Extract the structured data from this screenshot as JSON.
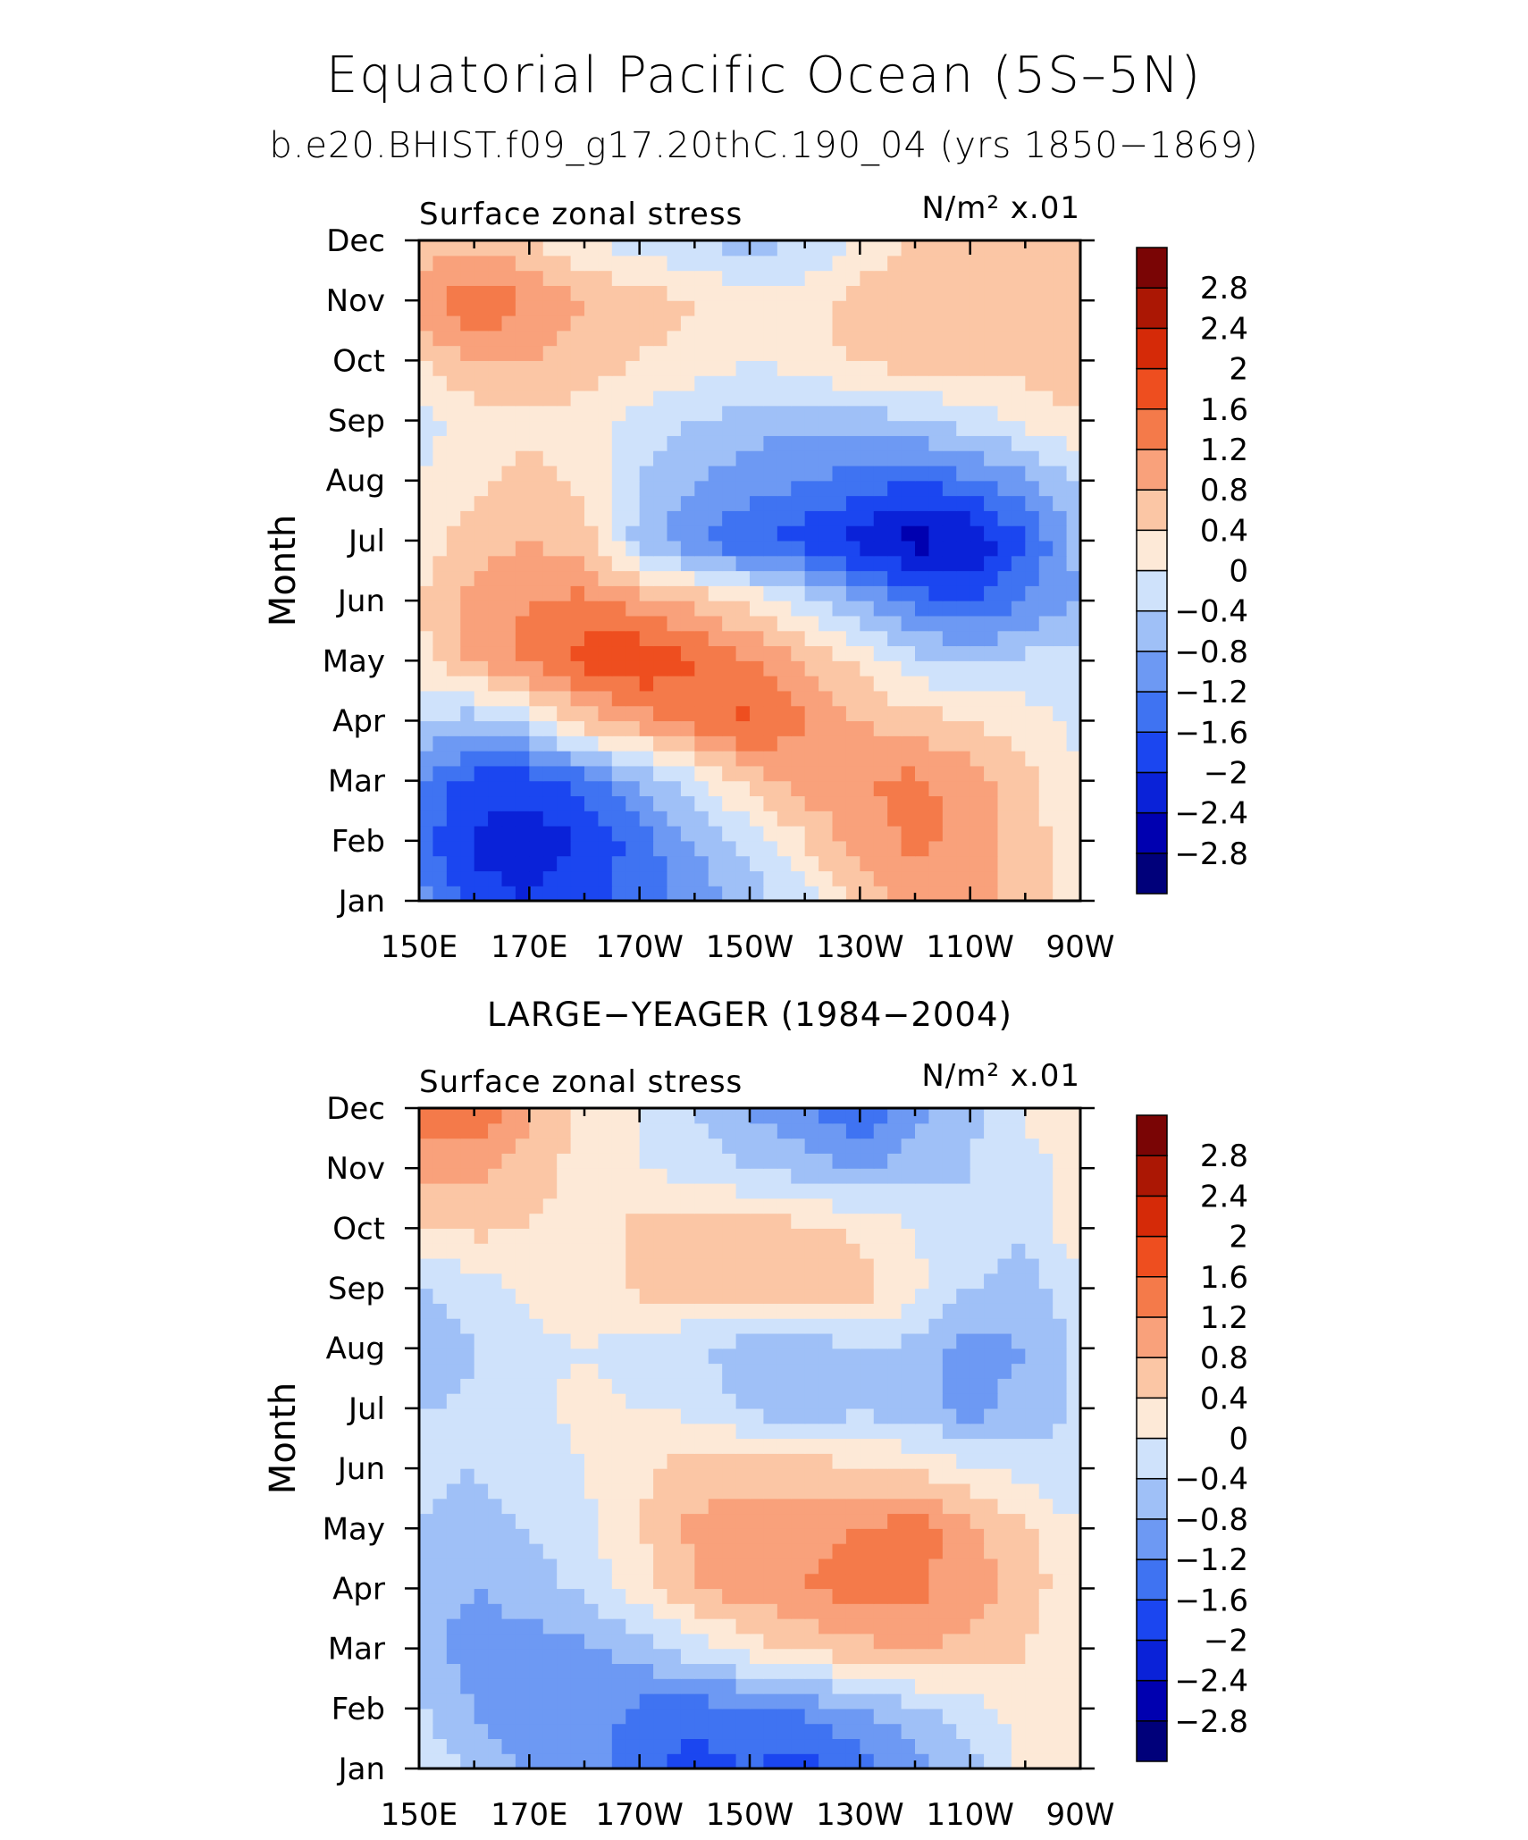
{
  "title": "Equatorial Pacific Ocean (5S–5N)",
  "subtitle": "b.e20.BHIST.f09_g17.20thC.190_04 (yrs 1850−1869)",
  "colorbar": {
    "colors": [
      "#00007a",
      "#0000b0",
      "#0a22d8",
      "#1b46f0",
      "#3f73f2",
      "#6d99f3",
      "#9fc0f7",
      "#cfe2fb",
      "#fde9d7",
      "#fbc6a5",
      "#f9a17b",
      "#f47a4a",
      "#ee4e1f",
      "#d52a08",
      "#ab1704",
      "#7a0505"
    ],
    "levels": [
      -2.8,
      -2.4,
      -2,
      -1.6,
      -1.2,
      -0.8,
      -0.4,
      0,
      0.4,
      0.8,
      1.2,
      1.6,
      2,
      2.4,
      2.8
    ],
    "labels": [
      "−2.8",
      "−2.4",
      "−2",
      "−1.6",
      "−1.2",
      "−0.8",
      "−0.4",
      "0",
      "0.4",
      "0.8",
      "1.2",
      "1.6",
      "2",
      "2.4",
      "2.8"
    ]
  },
  "chart_data": [
    {
      "type": "heatmap",
      "panel_title": "",
      "left_label": "Surface zonal stress",
      "right_label": "N/m² x.01",
      "ylabel": "Month",
      "xticklabels": [
        "150E",
        "170E",
        "170W",
        "150W",
        "130W",
        "110W",
        "90W"
      ],
      "yticklabels": [
        "Jan",
        "Feb",
        "Mar",
        "Apr",
        "May",
        "Jun",
        "Jul",
        "Aug",
        "Sep",
        "Oct",
        "Nov",
        "Dec"
      ],
      "xlim_deg_east": [
        150,
        270
      ],
      "x_deg_east": [
        150,
        160,
        170,
        180,
        190,
        200,
        210,
        220,
        230,
        240,
        250,
        260,
        270
      ],
      "values": [
        [
          -1.0,
          -1.8,
          -2.0,
          -1.8,
          -1.4,
          -1.0,
          -0.6,
          -0.2,
          0.6,
          1.0,
          1.0,
          0.6,
          0.1
        ],
        [
          -1.4,
          -2.1,
          -2.2,
          -2.0,
          -1.4,
          -0.8,
          -0.3,
          0.4,
          1.0,
          1.3,
          1.1,
          0.6,
          0.1
        ],
        [
          -1.2,
          -1.8,
          -1.8,
          -1.4,
          -0.8,
          -0.2,
          0.6,
          1.0,
          1.2,
          1.3,
          1.0,
          0.5,
          0.0
        ],
        [
          -0.4,
          -0.6,
          -0.2,
          0.6,
          1.0,
          1.4,
          1.7,
          1.2,
          0.8,
          0.6,
          0.4,
          0.2,
          -0.1
        ],
        [
          0.2,
          0.9,
          1.3,
          1.8,
          2.0,
          1.6,
          1.2,
          0.8,
          0.3,
          -0.3,
          -0.5,
          -0.3,
          -0.2
        ],
        [
          0.4,
          1.0,
          1.2,
          1.3,
          1.0,
          0.7,
          0.3,
          -0.2,
          -0.8,
          -1.4,
          -1.6,
          -1.2,
          -0.8
        ],
        [
          0.2,
          0.6,
          0.8,
          0.6,
          -0.6,
          -1.2,
          -1.6,
          -1.8,
          -2.2,
          -2.6,
          -2.4,
          -1.6,
          -0.6
        ],
        [
          0.0,
          0.3,
          0.5,
          0.3,
          -0.4,
          -0.8,
          -1.0,
          -1.2,
          -1.4,
          -1.6,
          -1.3,
          -0.9,
          -0.4
        ],
        [
          -0.2,
          0.2,
          0.3,
          0.2,
          -0.1,
          -0.4,
          -0.6,
          -0.7,
          -0.6,
          -0.5,
          -0.2,
          0.1,
          0.4
        ],
        [
          0.4,
          0.8,
          0.8,
          0.6,
          0.4,
          0.2,
          0.0,
          0.2,
          0.5,
          0.6,
          0.6,
          0.6,
          0.6
        ],
        [
          1.0,
          1.6,
          1.2,
          0.8,
          0.6,
          0.4,
          0.2,
          0.2,
          0.6,
          0.7,
          0.7,
          0.7,
          0.6
        ],
        [
          0.6,
          0.6,
          0.4,
          0.0,
          -0.2,
          -0.4,
          -0.6,
          -0.4,
          0.1,
          0.4,
          0.5,
          0.6,
          0.6
        ]
      ]
    },
    {
      "type": "heatmap",
      "panel_title": "LARGE−YEAGER (1984−2004)",
      "left_label": "Surface zonal stress",
      "right_label": "N/m² x.01",
      "ylabel": "Month",
      "xticklabels": [
        "150E",
        "170E",
        "170W",
        "150W",
        "130W",
        "110W",
        "90W"
      ],
      "yticklabels": [
        "Jan",
        "Feb",
        "Mar",
        "Apr",
        "May",
        "Jun",
        "Jul",
        "Aug",
        "Sep",
        "Oct",
        "Nov",
        "Dec"
      ],
      "xlim_deg_east": [
        150,
        270
      ],
      "x_deg_east": [
        150,
        160,
        170,
        180,
        190,
        200,
        210,
        220,
        230,
        240,
        250,
        260,
        270
      ],
      "values": [
        [
          0.1,
          -0.6,
          -0.8,
          -1.0,
          -1.4,
          -1.8,
          -1.6,
          -1.8,
          -1.4,
          -1.0,
          -0.6,
          0.1,
          0.2
        ],
        [
          -0.4,
          -0.8,
          -1.1,
          -1.0,
          -1.3,
          -1.4,
          -1.3,
          -1.1,
          -0.8,
          -0.5,
          -0.2,
          0.2,
          0.3
        ],
        [
          -0.6,
          -1.0,
          -1.0,
          -0.9,
          -0.6,
          -0.2,
          0.2,
          0.5,
          0.7,
          0.8,
          0.7,
          0.4,
          0.1
        ],
        [
          -0.6,
          -0.8,
          -0.6,
          -0.3,
          0.2,
          0.8,
          1.0,
          1.2,
          1.4,
          1.3,
          1.0,
          0.6,
          0.1
        ],
        [
          -0.4,
          -0.6,
          -0.4,
          -0.1,
          0.4,
          0.9,
          1.0,
          1.0,
          1.2,
          1.4,
          0.9,
          0.5,
          0.0
        ],
        [
          -0.3,
          -0.4,
          -0.2,
          0.0,
          0.3,
          0.6,
          0.6,
          0.6,
          0.5,
          0.3,
          0.1,
          -0.2,
          -0.4
        ],
        [
          -0.4,
          -0.3,
          -0.1,
          0.1,
          0.0,
          -0.1,
          -0.5,
          -0.7,
          -0.5,
          -0.6,
          -1.0,
          -0.6,
          -0.3
        ],
        [
          -0.9,
          -0.4,
          -0.1,
          0.0,
          -0.2,
          -0.4,
          -0.6,
          -0.8,
          -0.4,
          -0.5,
          -1.0,
          -0.8,
          -0.3
        ],
        [
          -0.4,
          -0.2,
          0.1,
          0.2,
          0.5,
          0.6,
          0.7,
          0.8,
          0.6,
          0.1,
          -0.4,
          -0.5,
          -0.2
        ],
        [
          0.3,
          0.5,
          0.4,
          0.2,
          0.5,
          0.6,
          0.6,
          0.5,
          0.3,
          0.0,
          -0.3,
          -0.4,
          0.4
        ],
        [
          1.0,
          0.9,
          0.6,
          0.2,
          0.0,
          -0.2,
          -0.4,
          -0.6,
          -0.8,
          -0.6,
          -0.4,
          -0.2,
          0.1
        ],
        [
          1.3,
          1.7,
          0.9,
          0.3,
          0.0,
          -0.4,
          -0.9,
          -1.1,
          -1.6,
          -0.9,
          -0.5,
          0.1,
          0.3
        ]
      ]
    }
  ]
}
